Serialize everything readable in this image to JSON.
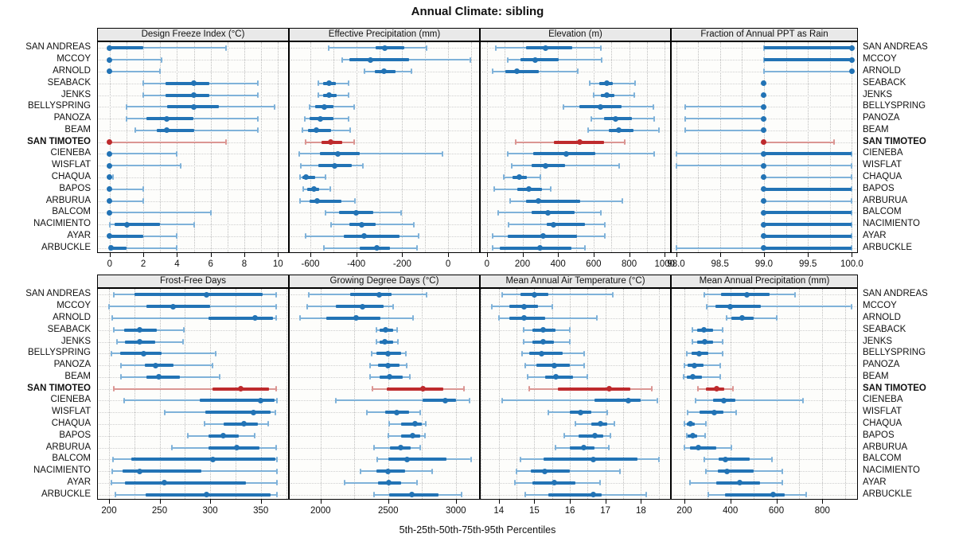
{
  "title": "Annual Climate: sibling",
  "footer": "5th-25th-50th-75th-95th Percentiles",
  "colors": {
    "blue": "#2273b5",
    "blue_light": "#7fb2d9",
    "red": "#be2a2d",
    "red_light": "#db9693",
    "strip_bg": "#e9e9e9",
    "panel_bg": "#fdfdfb",
    "grid": "#bdbdbd",
    "text": "#111111"
  },
  "stations": [
    "SAN ANDREAS",
    "MCCOY",
    "ARNOLD",
    "SEABACK",
    "JENKS",
    "BELLYSPRING",
    "PANOZA",
    "BEAM",
    "SAN TIMOTEO",
    "CIENEBA",
    "WISFLAT",
    "CHAQUA",
    "BAPOS",
    "ARBURUA",
    "BALCOM",
    "NACIMIENTO",
    "AYAR",
    "ARBUCKLE"
  ],
  "highlight_station": "SAN TIMOTEO",
  "chart_data": {
    "type": "dotplot-percentile-intervals",
    "percentiles": [
      "5th",
      "25th",
      "50th",
      "75th",
      "95th"
    ],
    "layout": "2 rows x 4 columns of panels; stations listed on both left and right; dotted grid; thin line = 5th-95th, thick bar = 25th-75th, dot = median; SAN TIMOTEO row highlighted red",
    "panels": [
      {
        "title": "Design Freeze Index (°C)",
        "xlim": [
          -0.7,
          10.6
        ],
        "minor_step": 1,
        "ticks": [
          0,
          2,
          4,
          6,
          8,
          10
        ],
        "tick_labels": [
          "0",
          "2",
          "4",
          "6",
          "8",
          "10"
        ],
        "values": [
          [
            0,
            0,
            0,
            2,
            6.9
          ],
          [
            0,
            0,
            0,
            0.1,
            3.1
          ],
          [
            0,
            0,
            0,
            0.1,
            3
          ],
          [
            2,
            3.3,
            5,
            5.9,
            8.8
          ],
          [
            2,
            3.3,
            5,
            5.9,
            8.8
          ],
          [
            1,
            3.4,
            5,
            6.5,
            9.8
          ],
          [
            1,
            2.2,
            3.4,
            5,
            8.8
          ],
          [
            1.5,
            2.8,
            3.4,
            5,
            8.8
          ],
          [
            0,
            0,
            0,
            0.1,
            6.9
          ],
          [
            0,
            0,
            0,
            0.1,
            4
          ],
          [
            0,
            0,
            0,
            0.1,
            4.2
          ],
          [
            0,
            0,
            0,
            0,
            0.2
          ],
          [
            0,
            0,
            0,
            0.1,
            2
          ],
          [
            0,
            0,
            0,
            0.1,
            2
          ],
          [
            0,
            0,
            0,
            0.1,
            6
          ],
          [
            0,
            0.3,
            1,
            3,
            5
          ],
          [
            0,
            0,
            0,
            2,
            4
          ],
          [
            0,
            0,
            0.1,
            1,
            4
          ]
        ]
      },
      {
        "title": "Effective Precipitation (mm)",
        "xlim": [
          -690,
          135
        ],
        "minor_step": 100,
        "ticks": [
          -600,
          -400,
          -200,
          0
        ],
        "tick_labels": [
          "-600",
          "-400",
          "-200",
          "0"
        ],
        "values": [
          [
            -520,
            -315,
            -275,
            -190,
            -95
          ],
          [
            -460,
            -430,
            -340,
            -170,
            95
          ],
          [
            -365,
            -320,
            -280,
            -230,
            -160
          ],
          [
            -565,
            -545,
            -520,
            -490,
            -435
          ],
          [
            -565,
            -545,
            -520,
            -485,
            -435
          ],
          [
            -605,
            -580,
            -540,
            -500,
            -410
          ],
          [
            -625,
            -605,
            -555,
            -500,
            -435
          ],
          [
            -635,
            -610,
            -575,
            -510,
            -425
          ],
          [
            -620,
            -550,
            -510,
            -460,
            -410
          ],
          [
            -650,
            -560,
            -480,
            -385,
            -25
          ],
          [
            -640,
            -565,
            -495,
            -420,
            -370
          ],
          [
            -645,
            -635,
            -620,
            -580,
            -535
          ],
          [
            -630,
            -615,
            -585,
            -560,
            -515
          ],
          [
            -645,
            -605,
            -570,
            -465,
            -405
          ],
          [
            -535,
            -475,
            -400,
            -325,
            -205
          ],
          [
            -510,
            -430,
            -375,
            -315,
            -150
          ],
          [
            -620,
            -455,
            -365,
            -210,
            -130
          ],
          [
            -540,
            -385,
            -310,
            -255,
            -135
          ]
        ]
      },
      {
        "title": "Elevation (m)",
        "xlim": [
          -35,
          1030
        ],
        "minor_step": 100,
        "ticks": [
          0,
          200,
          400,
          600,
          800,
          1000
        ],
        "tick_labels": [
          "0",
          "200",
          "400",
          "600",
          "800",
          "1000"
        ],
        "values": [
          [
            50,
            220,
            330,
            480,
            640
          ],
          [
            115,
            190,
            270,
            405,
            645
          ],
          [
            30,
            105,
            170,
            290,
            510
          ],
          [
            580,
            630,
            675,
            710,
            835
          ],
          [
            600,
            640,
            675,
            715,
            830
          ],
          [
            430,
            520,
            640,
            755,
            935
          ],
          [
            585,
            660,
            725,
            815,
            940
          ],
          [
            570,
            685,
            740,
            825,
            965
          ],
          [
            160,
            375,
            520,
            660,
            775
          ],
          [
            115,
            260,
            445,
            610,
            940
          ],
          [
            140,
            250,
            330,
            440,
            745
          ],
          [
            95,
            145,
            180,
            225,
            300
          ],
          [
            40,
            170,
            235,
            310,
            360
          ],
          [
            130,
            220,
            290,
            525,
            760
          ],
          [
            65,
            250,
            345,
            495,
            640
          ],
          [
            120,
            335,
            375,
            550,
            665
          ],
          [
            30,
            115,
            315,
            505,
            665
          ],
          [
            30,
            70,
            300,
            475,
            550
          ]
        ]
      },
      {
        "title": "Fraction of Annual PPT as Rain",
        "xlim": [
          97.95,
          100.06
        ],
        "minor_step": 0.25,
        "ticks": [
          98.0,
          98.5,
          99.0,
          99.5,
          100.0
        ],
        "tick_labels": [
          "98.0",
          "98.5",
          "99.0",
          "99.5",
          "100.0"
        ],
        "values": [
          [
            99,
            99,
            100,
            100,
            100
          ],
          [
            99,
            99,
            100,
            100,
            100
          ],
          [
            99,
            100,
            100,
            100,
            100
          ],
          [
            99,
            99,
            99,
            99,
            99
          ],
          [
            99,
            99,
            99,
            99,
            99
          ],
          [
            98.1,
            99,
            99,
            99,
            99
          ],
          [
            98.1,
            99,
            99,
            99,
            99
          ],
          [
            98.1,
            99,
            99,
            99,
            99
          ],
          [
            99,
            99,
            99,
            99,
            99.8
          ],
          [
            98,
            99,
            99,
            100,
            100
          ],
          [
            98,
            99,
            99,
            99,
            100
          ],
          [
            99,
            99,
            99,
            99,
            100
          ],
          [
            99,
            99,
            99,
            100,
            100
          ],
          [
            99,
            99,
            99,
            99,
            100
          ],
          [
            99,
            99,
            99,
            100,
            100
          ],
          [
            99,
            99,
            99,
            100,
            100
          ],
          [
            99,
            99,
            99,
            100,
            100
          ],
          [
            98,
            99,
            99,
            100,
            100
          ]
        ]
      },
      {
        "title": "Frost-Free Days",
        "xlim": [
          189,
          377
        ],
        "minor_step": 25,
        "ticks": [
          200,
          250,
          300,
          350
        ],
        "tick_labels": [
          "200",
          "250",
          "300",
          "350"
        ],
        "values": [
          [
            205,
            225,
            296,
            352,
            365
          ],
          [
            200,
            237,
            263,
            300,
            365
          ],
          [
            203,
            298,
            344,
            362,
            365
          ],
          [
            205,
            215,
            230,
            247,
            274
          ],
          [
            208,
            216,
            230,
            246,
            273
          ],
          [
            202,
            211,
            234,
            252,
            305
          ],
          [
            212,
            235,
            246,
            264,
            302
          ],
          [
            212,
            237,
            249,
            270,
            309
          ],
          [
            205,
            302,
            330,
            358,
            365
          ],
          [
            215,
            290,
            350,
            364,
            366
          ],
          [
            255,
            295,
            343,
            360,
            364
          ],
          [
            294,
            313,
            333,
            347,
            357
          ],
          [
            278,
            298,
            313,
            328,
            344
          ],
          [
            262,
            298,
            326,
            349,
            365
          ],
          [
            204,
            222,
            303,
            364,
            366
          ],
          [
            203,
            213,
            230,
            291,
            366
          ],
          [
            202,
            216,
            255,
            335,
            366
          ],
          [
            206,
            236,
            296,
            360,
            366
          ]
        ]
      },
      {
        "title": "Growing Degree Days (°C)",
        "xlim": [
          1772,
          3172
        ],
        "minor_step": 250,
        "ticks": [
          2000,
          2500,
          3000
        ],
        "tick_labels": [
          "2000",
          "2500",
          "3000"
        ],
        "values": [
          [
            1910,
            2220,
            2435,
            2525,
            2785
          ],
          [
            1900,
            2110,
            2310,
            2465,
            2535
          ],
          [
            1850,
            2040,
            2260,
            2445,
            2685
          ],
          [
            2415,
            2435,
            2480,
            2535,
            2565
          ],
          [
            2415,
            2435,
            2475,
            2535,
            2570
          ],
          [
            2375,
            2415,
            2500,
            2595,
            2630
          ],
          [
            2365,
            2425,
            2500,
            2585,
            2635
          ],
          [
            2365,
            2435,
            2510,
            2605,
            2660
          ],
          [
            2385,
            2490,
            2755,
            2910,
            3060
          ],
          [
            2115,
            2755,
            2920,
            3000,
            3100
          ],
          [
            2345,
            2475,
            2560,
            2655,
            2735
          ],
          [
            2505,
            2595,
            2700,
            2750,
            2780
          ],
          [
            2500,
            2595,
            2680,
            2735,
            2770
          ],
          [
            2395,
            2510,
            2595,
            2665,
            2735
          ],
          [
            2420,
            2500,
            2640,
            2930,
            3110
          ],
          [
            2295,
            2415,
            2500,
            2625,
            2825
          ],
          [
            2180,
            2425,
            2505,
            2595,
            2710
          ],
          [
            2395,
            2505,
            2675,
            2870,
            3040
          ]
        ]
      },
      {
        "title": "Mean Annual Air Temperature (°C)",
        "xlim": [
          13.49,
          18.82
        ],
        "minor_step": 0.5,
        "ticks": [
          14,
          15,
          16,
          17,
          18
        ],
        "tick_labels": [
          "14",
          "15",
          "16",
          "17",
          "18"
        ],
        "values": [
          [
            14.1,
            14.6,
            15.0,
            15.4,
            17.2
          ],
          [
            13.8,
            14.3,
            14.7,
            15.1,
            15.5
          ],
          [
            14.0,
            14.3,
            14.7,
            15.3,
            16.75
          ],
          [
            14.7,
            14.95,
            15.25,
            15.6,
            16.0
          ],
          [
            14.7,
            14.95,
            15.25,
            15.55,
            16.0
          ],
          [
            14.65,
            14.85,
            15.2,
            15.8,
            16.4
          ],
          [
            14.75,
            15.05,
            15.55,
            16.0,
            16.4
          ],
          [
            14.8,
            15.3,
            15.6,
            16.1,
            16.5
          ],
          [
            14.85,
            15.65,
            17.1,
            17.7,
            18.3
          ],
          [
            14.1,
            16.7,
            17.65,
            18.0,
            18.45
          ],
          [
            15.4,
            16.0,
            16.3,
            16.6,
            17.05
          ],
          [
            16.15,
            16.6,
            16.85,
            17.05,
            17.25
          ],
          [
            15.85,
            16.25,
            16.7,
            16.95,
            17.15
          ],
          [
            15.6,
            16.0,
            16.4,
            16.7,
            17.1
          ],
          [
            14.6,
            15.25,
            16.65,
            17.9,
            18.5
          ],
          [
            14.5,
            14.9,
            15.3,
            16.0,
            17.4
          ],
          [
            14.45,
            14.95,
            15.55,
            16.15,
            16.85
          ],
          [
            14.75,
            15.4,
            16.65,
            16.9,
            18.15
          ]
        ]
      },
      {
        "title": "Mean Annual Precipitation (mm)",
        "xlim": [
          145,
          951
        ],
        "minor_step": 100,
        "ticks": [
          200,
          400,
          600,
          800
        ],
        "tick_labels": [
          "200",
          "400",
          "600",
          "800"
        ],
        "values": [
          [
            285,
            360,
            470,
            570,
            680
          ],
          [
            298,
            335,
            398,
            533,
            925
          ],
          [
            385,
            405,
            450,
            500,
            600
          ],
          [
            235,
            255,
            285,
            325,
            365
          ],
          [
            235,
            255,
            290,
            325,
            365
          ],
          [
            210,
            230,
            265,
            305,
            365
          ],
          [
            200,
            215,
            245,
            283,
            355
          ],
          [
            195,
            210,
            235,
            275,
            355
          ],
          [
            260,
            295,
            340,
            375,
            410
          ],
          [
            250,
            325,
            370,
            420,
            715
          ],
          [
            215,
            265,
            330,
            370,
            425
          ],
          [
            200,
            210,
            225,
            245,
            295
          ],
          [
            210,
            215,
            235,
            255,
            290
          ],
          [
            200,
            225,
            260,
            340,
            405
          ],
          [
            285,
            350,
            380,
            485,
            580
          ],
          [
            295,
            345,
            385,
            500,
            625
          ],
          [
            225,
            340,
            440,
            530,
            625
          ],
          [
            305,
            375,
            585,
            635,
            730
          ]
        ]
      }
    ]
  }
}
